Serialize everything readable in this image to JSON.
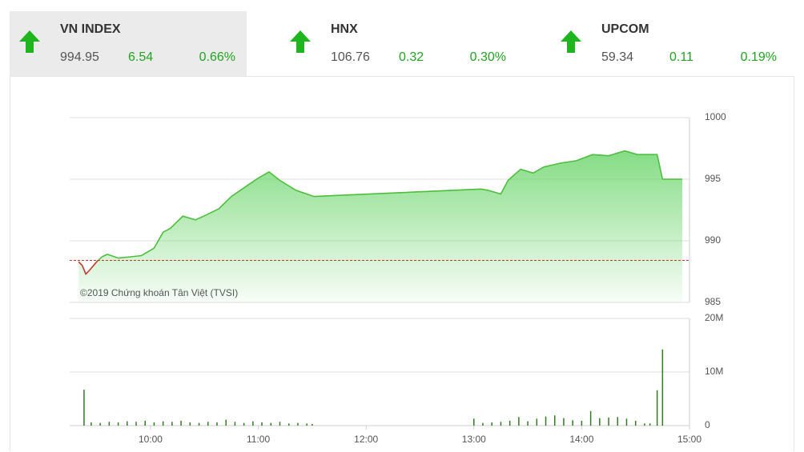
{
  "header": {
    "indices": [
      {
        "name": "VN INDEX",
        "value": "994.95",
        "change": "6.54",
        "percent": "0.66%"
      },
      {
        "name": "HNX",
        "value": "106.76",
        "change": "0.32",
        "percent": "0.30%"
      },
      {
        "name": "UPCOM",
        "value": "59.34",
        "change": "0.11",
        "percent": "0.19%"
      }
    ]
  },
  "chart_data": [
    {
      "type": "area",
      "watermark": "©2019 Chứng khoán Tân Việt (TVSI)",
      "color": "#4cbf3c",
      "below_color": "#c0392b",
      "reference_line": 988.41,
      "x": [
        560,
        562,
        564,
        566,
        570,
        573,
        576,
        582,
        589,
        595,
        602,
        607,
        611,
        618,
        625,
        631,
        638,
        645,
        654,
        660,
        666,
        672,
        681,
        687,
        691,
        784,
        788,
        795,
        799,
        806,
        813,
        819,
        828,
        837,
        846,
        855,
        864,
        871,
        882,
        885,
        896
      ],
      "values": [
        988.3,
        988.0,
        987.3,
        987.6,
        988.3,
        988.7,
        988.9,
        988.6,
        988.7,
        988.8,
        989.4,
        990.7,
        991.0,
        992.0,
        991.7,
        992.1,
        992.6,
        993.6,
        994.5,
        995.1,
        995.6,
        994.9,
        994.1,
        993.8,
        993.6,
        994.2,
        994.1,
        993.8,
        994.9,
        995.8,
        995.5,
        996.0,
        996.3,
        996.5,
        997.0,
        996.9,
        997.3,
        997.0,
        997.0,
        995.0,
        995.0
      ],
      "xlim": [
        555,
        900
      ],
      "ylim": [
        985,
        1000
      ],
      "yticks": [
        985,
        990,
        995,
        1000
      ],
      "grid": true
    },
    {
      "type": "bar",
      "color": "#2e7d1e",
      "x": [
        563,
        567,
        572,
        577,
        582,
        587,
        592,
        597,
        602,
        607,
        612,
        617,
        622,
        627,
        632,
        637,
        642,
        647,
        652,
        657,
        662,
        667,
        672,
        677,
        682,
        687,
        690,
        780,
        785,
        790,
        795,
        800,
        805,
        810,
        815,
        820,
        825,
        830,
        835,
        840,
        845,
        850,
        855,
        860,
        865,
        870,
        875,
        878,
        882,
        885
      ],
      "values": [
        6700000,
        600000,
        500000,
        700000,
        600000,
        800000,
        700000,
        900000,
        600000,
        800000,
        700000,
        900000,
        600000,
        500000,
        700000,
        600000,
        1100000,
        700000,
        500000,
        800000,
        600000,
        500000,
        700000,
        400000,
        500000,
        400000,
        300000,
        1300000,
        500000,
        600000,
        700000,
        900000,
        1600000,
        800000,
        1300000,
        1700000,
        1900000,
        1400000,
        1000000,
        900000,
        2700000,
        1400000,
        1500000,
        1600000,
        1300000,
        900000,
        400000,
        400000,
        6600000,
        14200000
      ],
      "xlim": [
        555,
        900
      ],
      "ylim": [
        0,
        20000000
      ],
      "yticks": [
        0,
        {
          "value": 10000000,
          "label": "10M"
        },
        {
          "value": 20000000,
          "label": "20M"
        }
      ],
      "xticks": [
        {
          "value": 600,
          "label": "10:00"
        },
        {
          "value": 660,
          "label": "11:00"
        },
        {
          "value": 720,
          "label": "12:00"
        },
        {
          "value": 780,
          "label": "13:00"
        },
        {
          "value": 840,
          "label": "14:00"
        },
        {
          "value": 900,
          "label": "15:00"
        }
      ],
      "grid": true
    }
  ]
}
